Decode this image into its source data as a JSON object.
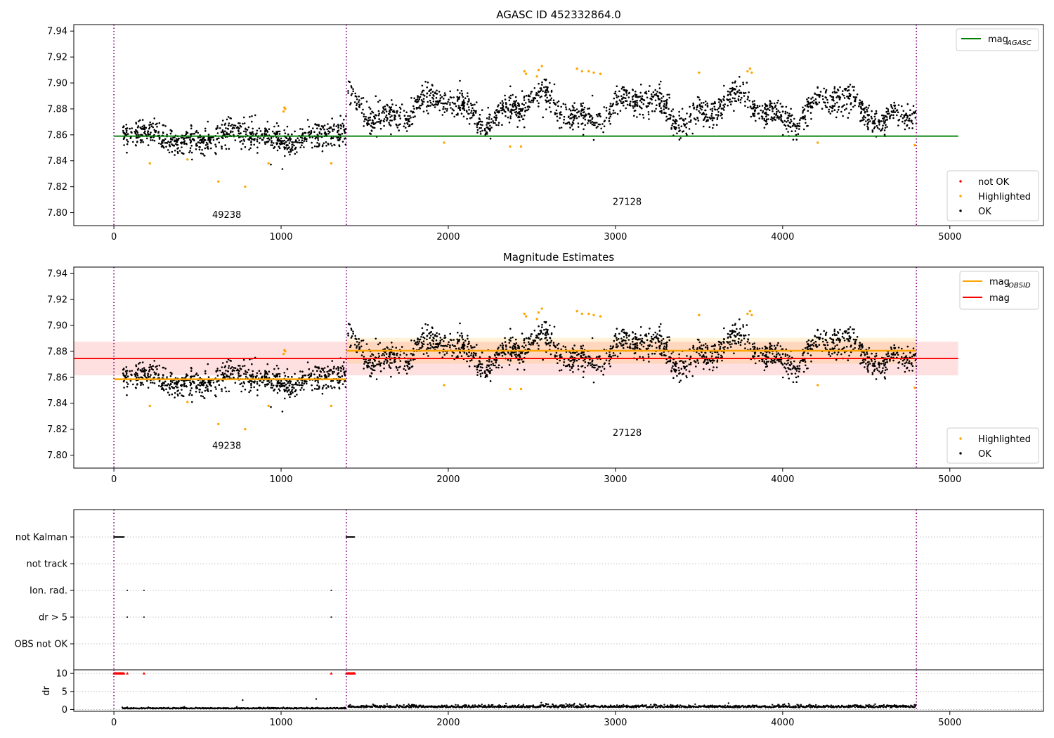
{
  "chart_data": [
    {
      "type": "scatter",
      "title": "AGASC ID 452332864.0",
      "xlim": [
        -240,
        5560
      ],
      "ylim": [
        7.79,
        7.945
      ],
      "xticks": [
        0,
        1000,
        2000,
        3000,
        4000,
        5000
      ],
      "yticks": [
        7.8,
        7.82,
        7.84,
        7.86,
        7.88,
        7.9,
        7.92,
        7.94
      ],
      "grid": false,
      "legend_top": {
        "placement": "top-right",
        "entries": [
          {
            "label": "mag",
            "sub": "AGASC",
            "color": "#008000"
          }
        ]
      },
      "legend_bottom": {
        "placement": "lower-right",
        "entries": [
          {
            "label": "not OK",
            "color": "#ff0000"
          },
          {
            "label": "Highlighted",
            "color": "#ffa500"
          },
          {
            "label": "OK",
            "color": "#000000"
          }
        ]
      },
      "obs_boundaries": [
        0,
        1390,
        4800
      ],
      "mag_agasc": {
        "value": 7.859,
        "x_range": [
          0,
          5050
        ]
      },
      "obsid_labels": [
        {
          "text": "49238",
          "x": 700,
          "y": 7.796
        },
        {
          "text": "27128",
          "x": 3095,
          "y": 7.806
        }
      ],
      "segments": [
        {
          "obsid": "49238",
          "x_range": [
            50,
            1390
          ],
          "center": 7.8585,
          "points": 780
        },
        {
          "obsid": "27128",
          "x_range": [
            1400,
            4800
          ],
          "center": 7.88,
          "points": 1800
        }
      ],
      "highlighted": [
        [
          215,
          7.838
        ],
        [
          440,
          7.841
        ],
        [
          625,
          7.824
        ],
        [
          785,
          7.82
        ],
        [
          925,
          7.838
        ],
        [
          1015,
          7.878
        ],
        [
          1020,
          7.881
        ],
        [
          1025,
          7.88
        ],
        [
          1300,
          7.838
        ],
        [
          1975,
          7.854
        ],
        [
          2370,
          7.851
        ],
        [
          2435,
          7.851
        ],
        [
          2455,
          7.909
        ],
        [
          2465,
          7.907
        ],
        [
          2530,
          7.905
        ],
        [
          2540,
          7.91
        ],
        [
          2560,
          7.913
        ],
        [
          2770,
          7.911
        ],
        [
          2800,
          7.909
        ],
        [
          2840,
          7.909
        ],
        [
          2870,
          7.908
        ],
        [
          2910,
          7.907
        ],
        [
          3500,
          7.908
        ],
        [
          3790,
          7.909
        ],
        [
          3805,
          7.911
        ],
        [
          3815,
          7.908
        ],
        [
          4210,
          7.854
        ],
        [
          4790,
          7.852
        ]
      ],
      "not_ok": []
    },
    {
      "type": "scatter",
      "title": "Magnitude Estimates",
      "xlim": [
        -240,
        5560
      ],
      "ylim": [
        7.79,
        7.945
      ],
      "xticks": [
        0,
        1000,
        2000,
        3000,
        4000,
        5000
      ],
      "yticks": [
        7.8,
        7.82,
        7.84,
        7.86,
        7.88,
        7.9,
        7.92,
        7.94
      ],
      "grid": false,
      "legend_top": {
        "placement": "top-right",
        "entries": [
          {
            "label": "mag",
            "sub": "OBSID",
            "color": "#ffa500"
          },
          {
            "label": "mag",
            "sub": "",
            "color": "#ff0000"
          }
        ]
      },
      "legend_bottom": {
        "placement": "lower-right",
        "entries": [
          {
            "label": "Highlighted",
            "color": "#ffa500"
          },
          {
            "label": "OK",
            "color": "#000000"
          }
        ]
      },
      "obs_boundaries": [
        0,
        1390,
        4800
      ],
      "mag": {
        "value": 7.8745,
        "band": [
          7.8615,
          7.8875
        ],
        "x_range": [
          -240,
          5050
        ]
      },
      "mag_obsid": [
        {
          "x_range": [
            0,
            1390
          ],
          "value": 7.8585
        },
        {
          "x_range": [
            1390,
            4800
          ],
          "value": 7.8805,
          "band": [
            7.8705,
            7.8905
          ]
        }
      ],
      "obsid_labels": [
        {
          "text": "49238",
          "x": 700,
          "y": 7.805
        },
        {
          "text": "27128",
          "x": 3095,
          "y": 7.815
        }
      ]
    },
    {
      "type": "scatter",
      "title": "",
      "xlim": [
        -240,
        5560
      ],
      "category_ticks": [
        "not Kalman",
        "not track",
        "Ion. rad.",
        "dr > 5",
        "OBS not OK"
      ],
      "flag_points": {
        "not Kalman": [
          [
            0,
            60
          ],
          [
            1390,
            1440
          ]
        ],
        "not track": [],
        "Ion. rad.": [
          80,
          180,
          1300
        ],
        "dr > 5": [
          80,
          180,
          1300
        ],
        "OBS not OK": []
      },
      "dr_panel": {
        "ylabel": "dr",
        "ylim": [
          -0.5,
          11
        ],
        "yticks": [
          0,
          5,
          10
        ],
        "clip_value": 10,
        "clipped_x": [
          [
            0,
            60
          ],
          [
            80,
            80
          ],
          [
            180,
            180
          ],
          [
            1300,
            1300
          ],
          [
            1390,
            1440
          ]
        ],
        "outliers": [
          [
            770,
            2.6
          ],
          [
            1210,
            2.9
          ]
        ]
      },
      "xticks": [
        0,
        1000,
        2000,
        3000,
        4000,
        5000
      ],
      "obs_boundaries": [
        0,
        1390,
        4800
      ]
    }
  ]
}
